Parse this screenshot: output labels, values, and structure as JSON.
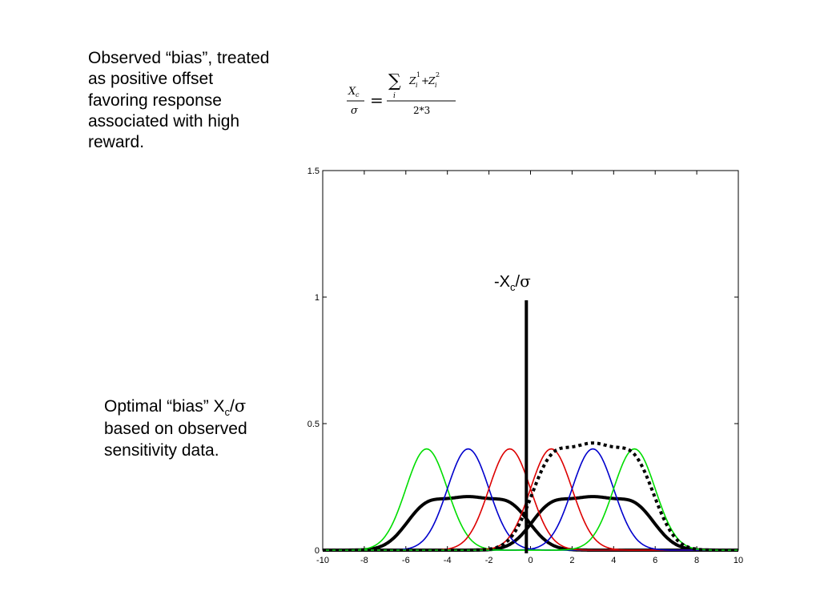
{
  "notes": {
    "top": [
      "Observed “bias”, treated",
      "as positive offset",
      "favoring response",
      "associated with high",
      "reward."
    ],
    "bottom": {
      "line1_prefix": "Optimal “bias” X",
      "line1_sub": "c",
      "line1_sep": "/",
      "line1_symbol": "σ",
      "line2": "based on observed",
      "line3": "sensitivity data."
    }
  },
  "formula": {
    "lhs_num": "X",
    "lhs_num_sub": "c",
    "lhs_den": "σ",
    "equals": "=",
    "sum_symbol": "∑",
    "sum_index": "i",
    "term1": "Z",
    "term1_sub": "i",
    "term1_sup": "1",
    "plus": "+",
    "term2": "Z",
    "term2_sub": "i",
    "term2_sup": "2",
    "denominator": "2*3"
  },
  "chart_data": {
    "type": "line",
    "xlim": [
      -10,
      10
    ],
    "ylim": [
      0,
      1.5
    ],
    "xticks": [
      "-10",
      "-8",
      "-6",
      "-4",
      "-2",
      "0",
      "2",
      "4",
      "6",
      "8",
      "10"
    ],
    "yticks": [
      "0",
      "0.5",
      "1",
      "1.5"
    ],
    "grid": false,
    "vline": {
      "x": -0.2,
      "label_prefix": "-X",
      "label_sub": "c",
      "label_sep": "/",
      "label_symbol": "σ"
    },
    "series": [
      {
        "color": "#00dd00",
        "style": "solid",
        "mu": -5,
        "sigma": 1.0,
        "amp": 0.4
      },
      {
        "color": "#0000cc",
        "style": "solid",
        "mu": -3,
        "sigma": 1.0,
        "amp": 0.4
      },
      {
        "color": "#dd0000",
        "style": "solid",
        "mu": -1,
        "sigma": 1.0,
        "amp": 0.4
      },
      {
        "color": "#dd0000",
        "style": "solid",
        "mu": 1,
        "sigma": 1.0,
        "amp": 0.4
      },
      {
        "color": "#0000cc",
        "style": "solid",
        "mu": 3,
        "sigma": 1.0,
        "amp": 0.4
      },
      {
        "color": "#00dd00",
        "style": "solid",
        "mu": 5,
        "sigma": 1.0,
        "amp": 0.4
      },
      {
        "color": "#000000",
        "style": "thick",
        "sum_of": [
          -5,
          -3,
          -1
        ],
        "sigma": 1.0,
        "amp": 0.4
      },
      {
        "color": "#000000",
        "style": "thick",
        "sum_of": [
          1,
          3,
          5
        ],
        "sigma": 1.0,
        "amp": 0.4
      },
      {
        "color": "#000000",
        "style": "dotted",
        "sum_of": [
          1,
          3,
          5
        ],
        "sigma": 1.0,
        "amp": 0.8
      }
    ]
  }
}
